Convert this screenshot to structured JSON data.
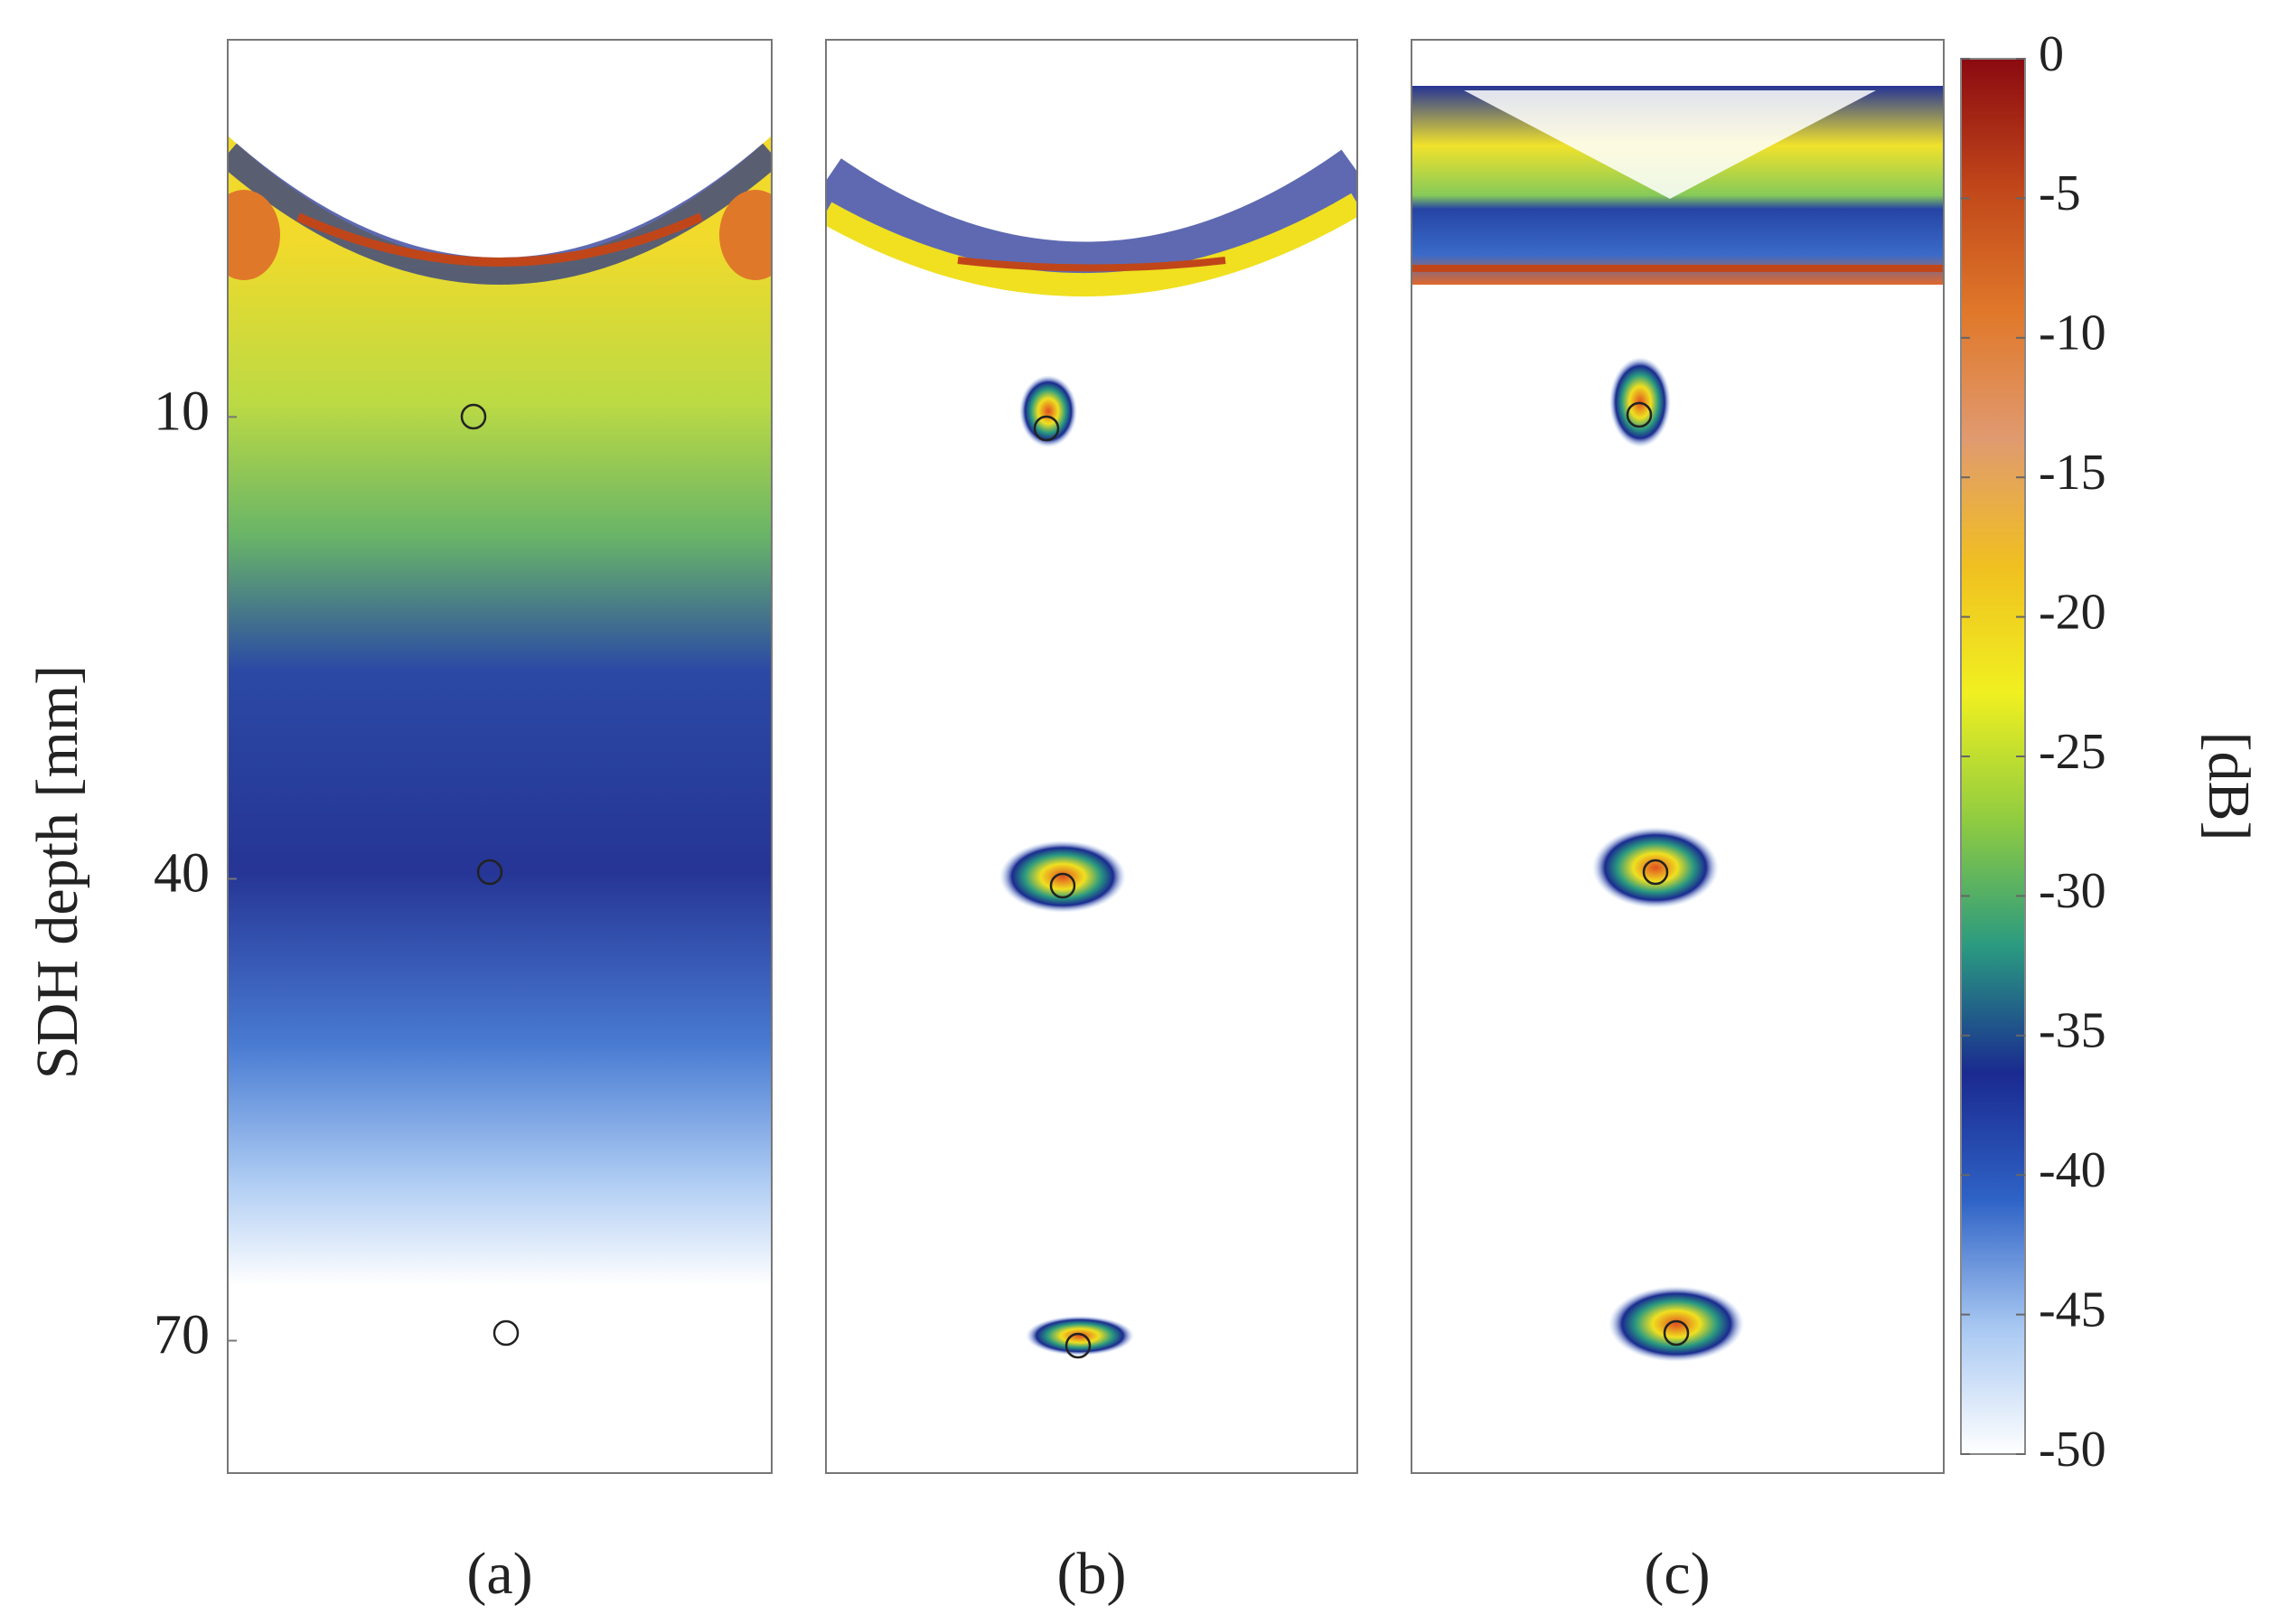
{
  "chart_data": {
    "type": "image-panels",
    "ylabel": "SDH depth [mm]",
    "ylim": [
      -14.5,
      78.6
    ],
    "yticks": [
      10,
      40,
      70
    ],
    "panels": [
      {
        "label": "(a)"
      },
      {
        "label": "(b)"
      },
      {
        "label": "(c)"
      }
    ],
    "colorbar": {
      "label": "[dB]",
      "lim": [
        -50,
        0
      ],
      "ticks": [
        0,
        -5,
        -10,
        -15,
        -20,
        -25,
        -30,
        -35,
        -40,
        -45,
        -50
      ],
      "colormap": [
        "#8a0a10",
        "#c0461a",
        "#e0782a",
        "#e09a70",
        "#f0c020",
        "#f0f020",
        "#90cc40",
        "#2a9a80",
        "#1a2a90",
        "#2f63c6",
        "#a8c8f2",
        "#ffffff"
      ]
    }
  }
}
